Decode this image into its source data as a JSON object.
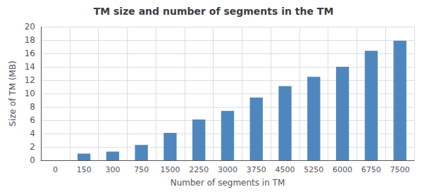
{
  "chart_data": {
    "type": "bar",
    "title": "TM size and number of segments in the TM",
    "xlabel": "Number of segments in TM",
    "ylabel": "Size of TM (MB)",
    "categories": [
      0,
      150,
      300,
      750,
      1500,
      2250,
      3000,
      3750,
      4500,
      5250,
      6000,
      6750,
      7500
    ],
    "values": [
      0,
      1.0,
      1.3,
      2.3,
      4.1,
      6.1,
      7.4,
      9.4,
      11.1,
      12.5,
      14.0,
      16.4,
      17.9
    ],
    "color": "#4E87BE",
    "ylim": [
      0,
      20
    ],
    "yticks": [
      0,
      2,
      4,
      6,
      8,
      10,
      12,
      14,
      16,
      18,
      20
    ],
    "grid": true
  }
}
